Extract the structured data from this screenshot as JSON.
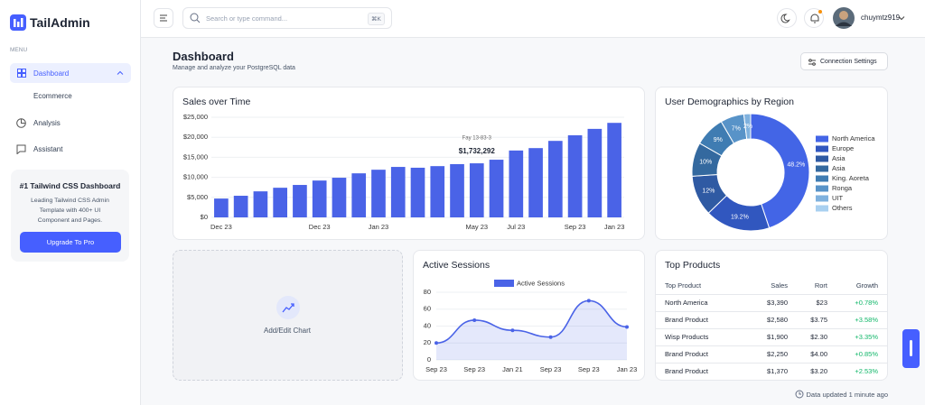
{
  "sidebar": {
    "brand": "TailAdmin",
    "menu_label": "MENU",
    "items": [
      "Dashboard",
      "Ecommerce",
      "Analysis",
      "Assistant"
    ],
    "promo": {
      "title": "#1 Tailwind CSS Dashboard",
      "text": "Leading Tailwind CSS Admin Template with 400+ UI Component and Pages.",
      "button": "Upgrade To Pro"
    }
  },
  "header": {
    "search_placeholder": "Search or type command...",
    "shortcut": "⌘K",
    "user": "chuymtz919"
  },
  "page": {
    "title": "Dashboard",
    "subtitle": "Manage and analyze your PostgreSQL data",
    "button": "Connection Settings",
    "footer": "Data updated 1 minute ago"
  },
  "placeholder_card": {
    "label": "Add/Edit Chart"
  },
  "table": {
    "title": "Top Products",
    "columns": [
      "Top Product",
      "Sales",
      "Rort",
      "Growth"
    ],
    "rows": [
      [
        "North America",
        "$3,390",
        "$23",
        "+0.78%"
      ],
      [
        "Brand Product",
        "$2,580",
        "$3.75",
        "+3.58%"
      ],
      [
        "Wisp Products",
        "$1,900",
        "$2.30",
        "+3.35%"
      ],
      [
        "Brand Product",
        "$2,250",
        "$4.00",
        "+0.85%"
      ],
      [
        "Brand Product",
        "$1,370",
        "$3.20",
        "+2.53%"
      ]
    ]
  },
  "chart_data": [
    {
      "type": "bar",
      "title": "Sales over Time",
      "categories": [
        "Dec 23",
        null,
        null,
        null,
        null,
        "Dec 23",
        null,
        null,
        "Jan 23",
        null,
        null,
        null,
        null,
        "May 23",
        null,
        "Jul 23",
        null,
        null,
        "Sep 23",
        null,
        "Jan 23"
      ],
      "values": [
        4700,
        5400,
        6500,
        7400,
        8100,
        9200,
        9900,
        11000,
        11900,
        12600,
        12400,
        12800,
        13300,
        13500,
        14400,
        16700,
        17300,
        19100,
        20500,
        22100,
        23600
      ],
      "color": "#4a63e7",
      "ylim": [
        0,
        25000
      ],
      "yticks": [
        {
          "value": 0,
          "label": "$0"
        },
        {
          "value": 5000,
          "label": "$5,000"
        },
        {
          "value": 10000,
          "label": "$10,000"
        },
        {
          "value": 15000,
          "label": "$15,000"
        },
        {
          "value": 20000,
          "label": "$20,000"
        },
        {
          "value": 25000,
          "label": "$25,000"
        }
      ],
      "grid": true,
      "annotation": {
        "title": "Fay 13-83-3",
        "text": "$1,732,292"
      }
    },
    {
      "type": "donut",
      "title": "User Demographics by Region",
      "categories": [
        "North America",
        "Europe",
        "Asia",
        "Asia",
        "King. Aoreta",
        "Ronga",
        "UIT",
        "Others"
      ],
      "values": [
        48.2,
        19.2,
        12,
        10,
        9,
        7,
        2,
        null
      ],
      "value_labels": [
        "48.2%",
        "19.2%",
        "12%",
        "10%",
        "9%",
        "7%",
        "2%",
        null
      ],
      "colors": [
        "#4365e6",
        "#3157bf",
        "#2f5aa3",
        "#34699f",
        "#3f7cb2",
        "#5893c8",
        "#7fb1de",
        "#a9d0f0"
      ],
      "legend": "right"
    },
    {
      "type": "line",
      "title": "Active Sessions",
      "categories": [
        "Sep 23",
        "Sep 23",
        "Jan 21",
        "Sep 23",
        "Sep 23",
        "Jan 23"
      ],
      "series": [
        {
          "name": "Active Sessions",
          "color": "#4a63e7",
          "values": [
            20,
            47,
            35,
            27,
            70,
            39
          ]
        }
      ],
      "ylim": [
        0,
        80
      ],
      "yticks": [
        0,
        20,
        40,
        60,
        80
      ],
      "grid": true,
      "area": true,
      "legend": "top"
    }
  ]
}
